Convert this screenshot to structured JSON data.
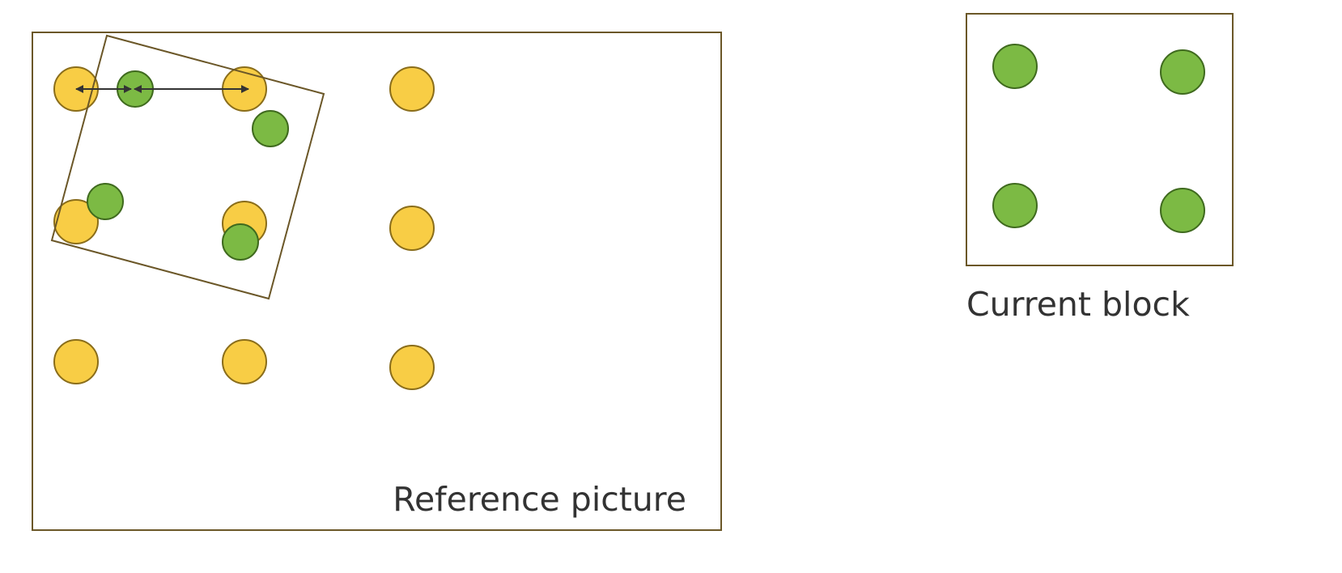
{
  "reference_picture": {
    "caption": "Reference picture"
  },
  "current_block": {
    "caption": "Current block"
  },
  "colors": {
    "frame_stroke": "#6b5728",
    "reference_sample_fill": "#f8cd45",
    "reference_sample_stroke": "#8a6d1a",
    "block_sample_fill": "#7cba44",
    "block_sample_stroke": "#3f6a1e",
    "arrow": "#333333",
    "caption_text": "#333333"
  }
}
